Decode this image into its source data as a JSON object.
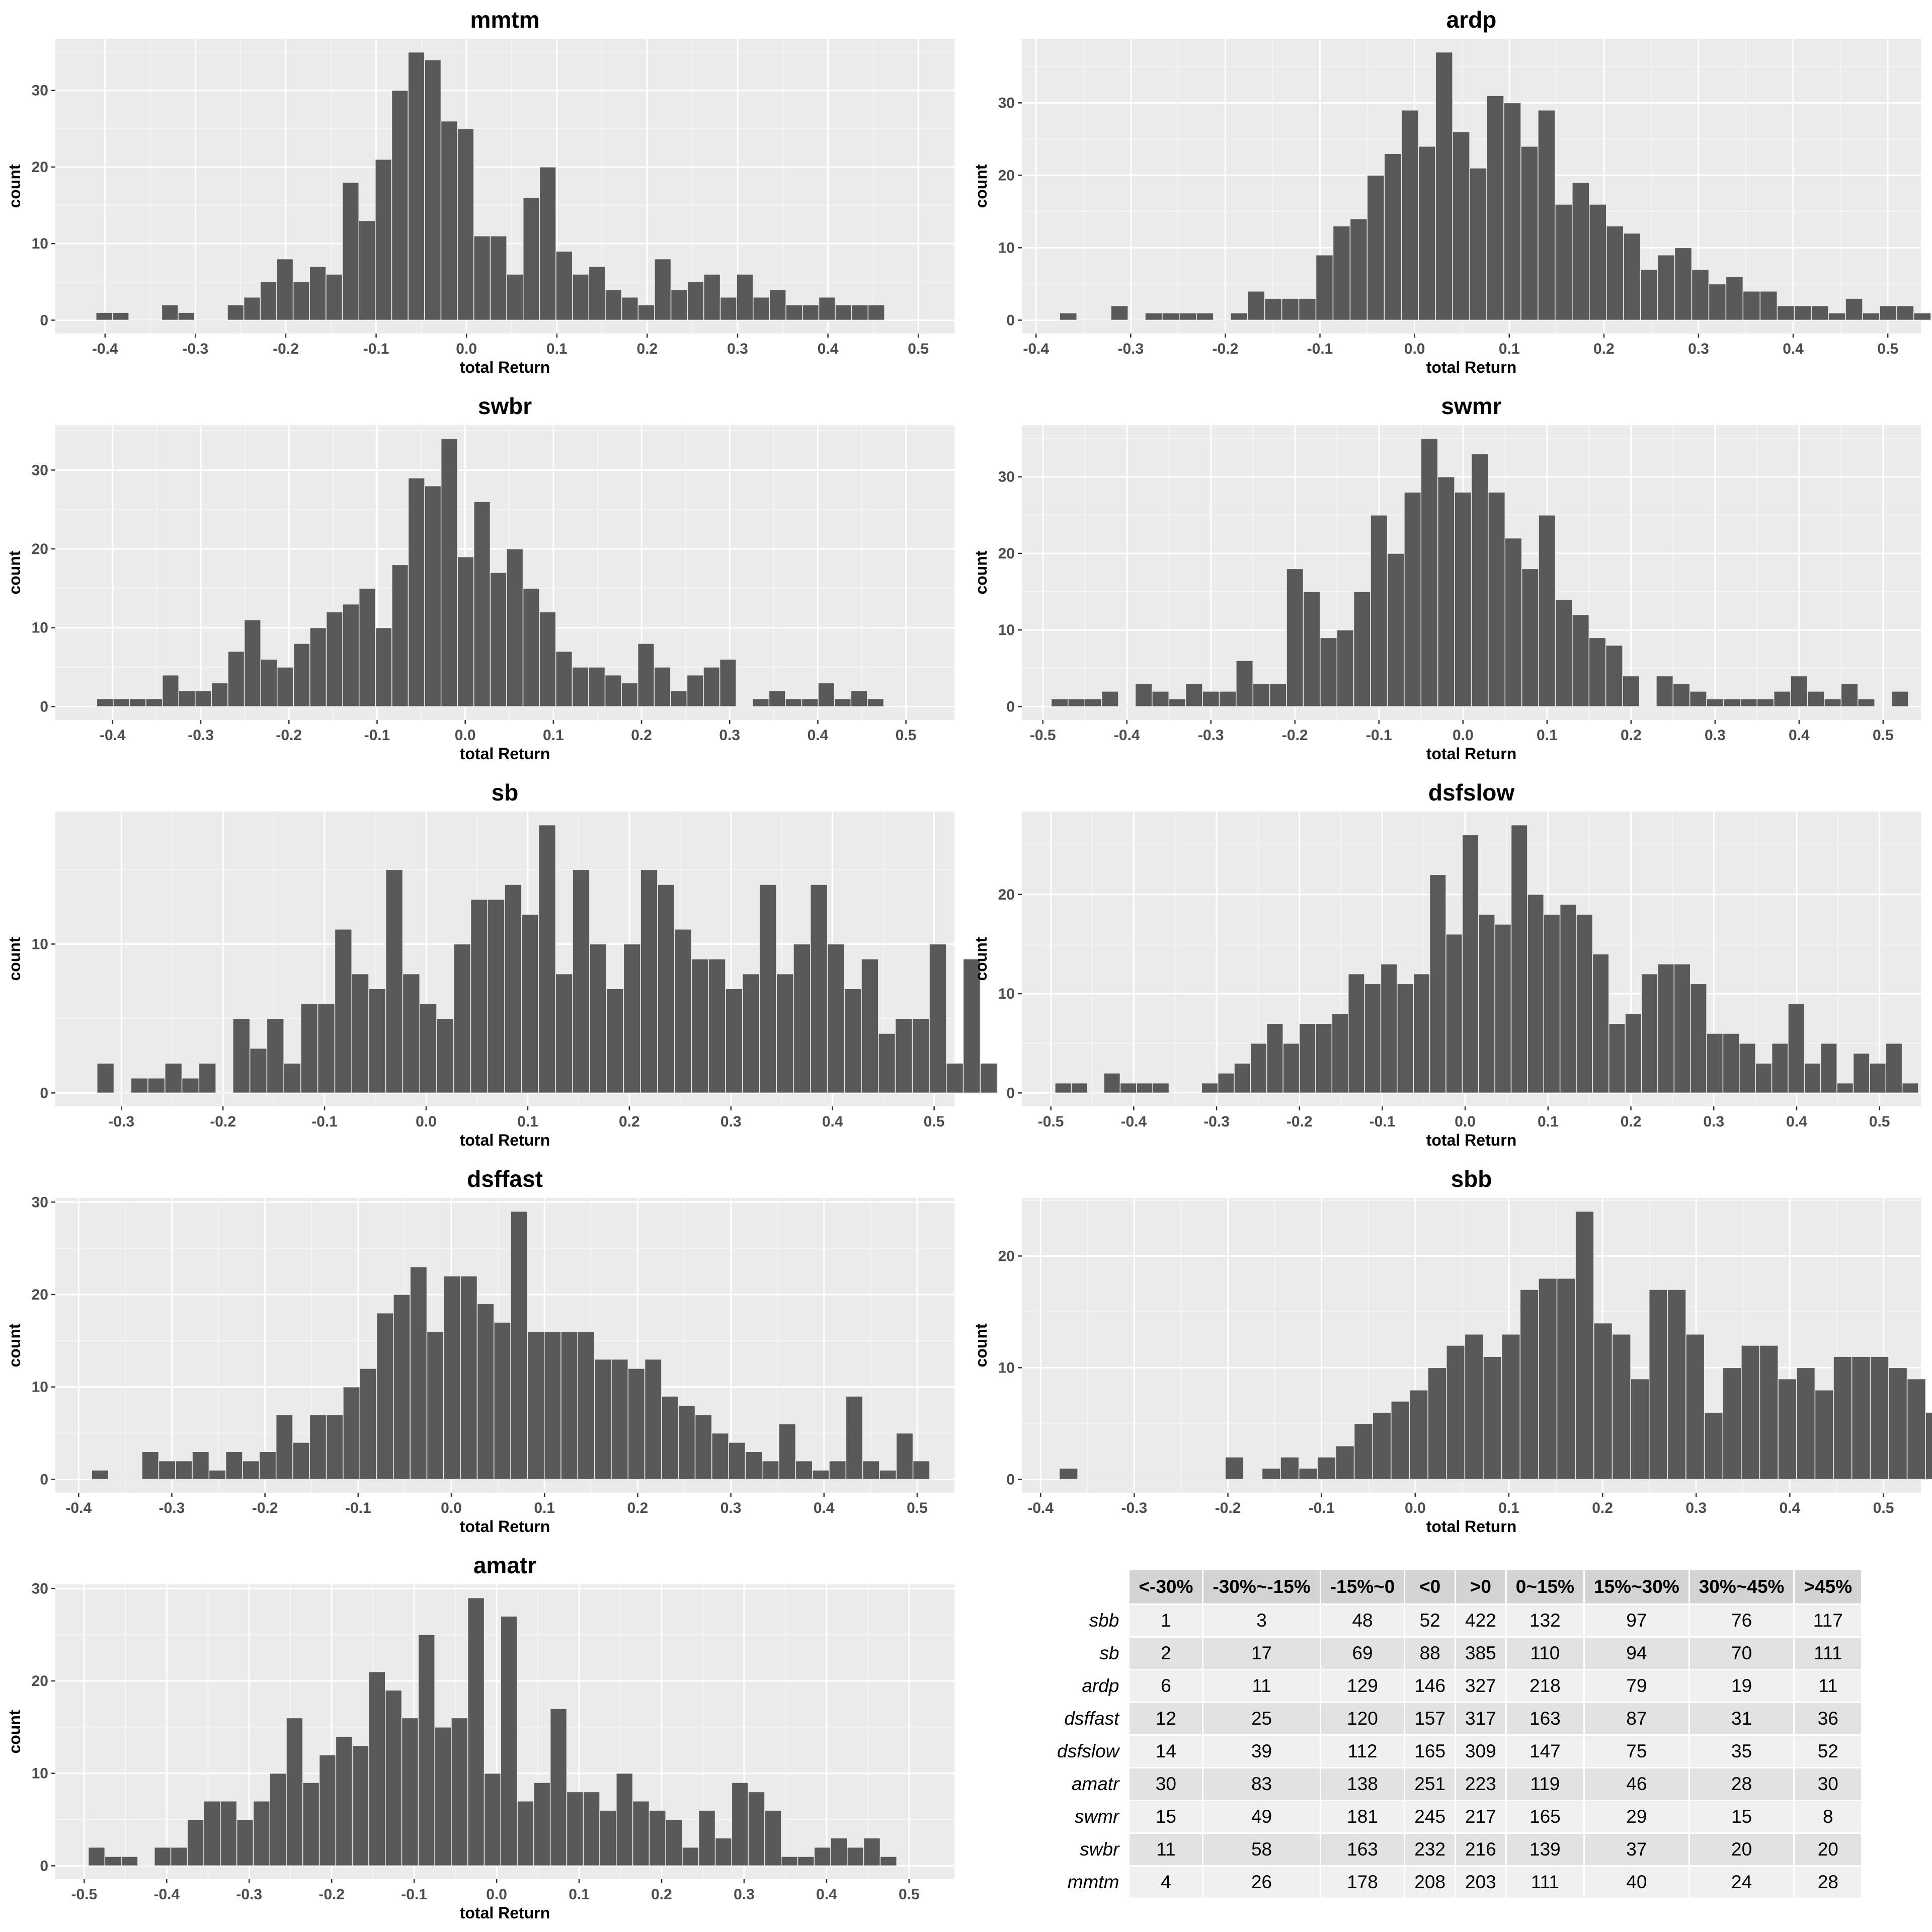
{
  "chart_data": [
    {
      "type": "bar",
      "title": "mmtm",
      "xlabel": "total Return",
      "ylabel": "count",
      "x_start": -0.41,
      "bin_width": 0.01818,
      "xlim": [
        -0.455,
        0.54
      ],
      "ylim": [
        -1.75,
        36.75
      ],
      "xticks": [
        "-0.4",
        "-0.3",
        "-0.2",
        "-0.1",
        "0.0",
        "0.1",
        "0.2",
        "0.3",
        "0.4",
        "0.5"
      ],
      "yticks": [
        "0",
        "10",
        "20",
        "30"
      ],
      "values": [
        1,
        1,
        0,
        0,
        2,
        1,
        0,
        0,
        2,
        3,
        5,
        8,
        5,
        7,
        6,
        18,
        13,
        21,
        30,
        35,
        34,
        26,
        25,
        11,
        11,
        6,
        16,
        20,
        9,
        6,
        7,
        4,
        3,
        2,
        8,
        4,
        5,
        6,
        3,
        6,
        3,
        4,
        2,
        2,
        3,
        2,
        2,
        2
      ]
    },
    {
      "type": "bar",
      "title": "ardp",
      "xlabel": "total Return",
      "ylabel": "count",
      "x_start": -0.375,
      "bin_width": 0.01805,
      "xlim": [
        -0.415,
        0.535
      ],
      "ylim": [
        -1.85,
        38.85
      ],
      "xticks": [
        "-0.4",
        "-0.3",
        "-0.2",
        "-0.1",
        "0.0",
        "0.1",
        "0.2",
        "0.3",
        "0.4",
        "0.5"
      ],
      "yticks": [
        "0",
        "10",
        "20",
        "30"
      ],
      "values": [
        1,
        0,
        0,
        2,
        0,
        1,
        1,
        1,
        1,
        0,
        1,
        4,
        3,
        3,
        3,
        9,
        13,
        14,
        20,
        23,
        29,
        24,
        37,
        26,
        21,
        31,
        30,
        24,
        29,
        16,
        19,
        16,
        13,
        12,
        7,
        9,
        10,
        7,
        5,
        6,
        4,
        4,
        2,
        2,
        2,
        1,
        3,
        1,
        2,
        2,
        1
      ]
    },
    {
      "type": "bar",
      "title": "swbr",
      "xlabel": "total Return",
      "ylabel": "count",
      "x_start": -0.418,
      "bin_width": 0.0186,
      "xlim": [
        -0.465,
        0.555
      ],
      "ylim": [
        -1.7,
        35.7
      ],
      "xticks": [
        "-0.4",
        "-0.3",
        "-0.2",
        "-0.1",
        "0.0",
        "0.1",
        "0.2",
        "0.3",
        "0.4",
        "0.5"
      ],
      "yticks": [
        "0",
        "10",
        "20",
        "30"
      ],
      "values": [
        1,
        1,
        1,
        1,
        4,
        2,
        2,
        3,
        7,
        11,
        6,
        5,
        8,
        10,
        12,
        13,
        15,
        10,
        18,
        29,
        28,
        34,
        19,
        26,
        17,
        20,
        15,
        12,
        7,
        5,
        5,
        4,
        3,
        8,
        5,
        2,
        4,
        5,
        6,
        0,
        1,
        2,
        1,
        1,
        3,
        1,
        2,
        1
      ]
    },
    {
      "type": "bar",
      "title": "swmr",
      "xlabel": "total Return",
      "ylabel": "count",
      "x_start": -0.49,
      "bin_width": 0.02,
      "xlim": [
        -0.525,
        0.545
      ],
      "ylim": [
        -1.75,
        36.75
      ],
      "xticks": [
        "-0.5",
        "-0.4",
        "-0.3",
        "-0.2",
        "-0.1",
        "0.0",
        "0.1",
        "0.2",
        "0.3",
        "0.4",
        "0.5"
      ],
      "yticks": [
        "0",
        "10",
        "20",
        "30"
      ],
      "values": [
        1,
        1,
        1,
        2,
        0,
        3,
        2,
        1,
        3,
        2,
        2,
        6,
        3,
        3,
        18,
        15,
        9,
        10,
        15,
        25,
        20,
        28,
        35,
        30,
        28,
        33,
        28,
        22,
        18,
        25,
        14,
        12,
        9,
        8,
        4,
        0,
        4,
        3,
        2,
        1,
        1,
        1,
        1,
        2,
        4,
        2,
        1,
        3,
        1,
        0,
        2
      ]
    },
    {
      "type": "bar",
      "title": "sb",
      "xlabel": "total Return",
      "ylabel": "count",
      "x_start": -0.324,
      "bin_width": 0.01672,
      "xlim": [
        -0.365,
        0.52
      ],
      "ylim": [
        -0.9,
        18.9
      ],
      "xticks": [
        "-0.3",
        "-0.2",
        "-0.1",
        "0.0",
        "0.1",
        "0.2",
        "0.3",
        "0.4",
        "0.5"
      ],
      "yticks": [
        "0",
        "10"
      ],
      "values": [
        2,
        0,
        1,
        1,
        2,
        1,
        2,
        0,
        5,
        3,
        5,
        2,
        6,
        6,
        11,
        8,
        7,
        15,
        8,
        6,
        5,
        10,
        13,
        13,
        14,
        12,
        18,
        8,
        15,
        10,
        7,
        10,
        15,
        14,
        11,
        9,
        9,
        7,
        8,
        14,
        8,
        10,
        14,
        10,
        7,
        9,
        4,
        5,
        5,
        10,
        2,
        9,
        2
      ]
    },
    {
      "type": "bar",
      "title": "dsfslow",
      "xlabel": "total Return",
      "ylabel": "count",
      "x_start": -0.495,
      "bin_width": 0.01966,
      "xlim": [
        -0.535,
        0.55
      ],
      "ylim": [
        -1.35,
        28.35
      ],
      "xticks": [
        "-0.5",
        "-0.4",
        "-0.3",
        "-0.2",
        "-0.1",
        "0.0",
        "0.1",
        "0.2",
        "0.3",
        "0.4",
        "0.5"
      ],
      "yticks": [
        "0",
        "10",
        "20"
      ],
      "values": [
        1,
        1,
        0,
        2,
        1,
        1,
        1,
        0,
        0,
        1,
        2,
        3,
        5,
        7,
        5,
        7,
        7,
        8,
        12,
        11,
        13,
        11,
        12,
        22,
        16,
        26,
        18,
        17,
        27,
        20,
        18,
        19,
        18,
        14,
        7,
        8,
        12,
        13,
        13,
        11,
        6,
        6,
        5,
        3,
        5,
        9,
        3,
        5,
        1,
        4,
        3,
        5,
        1
      ]
    },
    {
      "type": "bar",
      "title": "dsffast",
      "xlabel": "total Return",
      "ylabel": "count",
      "x_start": -0.386,
      "bin_width": 0.01799,
      "xlim": [
        -0.425,
        0.54
      ],
      "ylim": [
        -1.45,
        30.45
      ],
      "xticks": [
        "-0.4",
        "-0.3",
        "-0.2",
        "-0.1",
        "0.0",
        "0.1",
        "0.2",
        "0.3",
        "0.4",
        "0.5"
      ],
      "yticks": [
        "0",
        "10",
        "20",
        "30"
      ],
      "values": [
        1,
        0,
        0,
        3,
        2,
        2,
        3,
        1,
        3,
        2,
        3,
        7,
        4,
        7,
        7,
        10,
        12,
        18,
        20,
        23,
        16,
        22,
        22,
        19,
        17,
        29,
        16,
        16,
        16,
        16,
        13,
        13,
        12,
        13,
        9,
        8,
        7,
        5,
        4,
        3,
        2,
        6,
        2,
        1,
        2,
        9,
        2,
        1,
        5,
        2
      ]
    },
    {
      "type": "bar",
      "title": "sbb",
      "xlabel": "total Return",
      "ylabel": "count",
      "x_start": -0.38,
      "bin_width": 0.01968,
      "xlim": [
        -0.42,
        0.54
      ],
      "ylim": [
        -1.2,
        25.2
      ],
      "xticks": [
        "-0.4",
        "-0.3",
        "-0.2",
        "-0.1",
        "0.0",
        "0.1",
        "0.2",
        "0.3",
        "0.4",
        "0.5"
      ],
      "yticks": [
        "0",
        "10",
        "20"
      ],
      "values": [
        1,
        0,
        0,
        0,
        0,
        0,
        0,
        0,
        0,
        2,
        0,
        1,
        2,
        1,
        2,
        3,
        5,
        6,
        7,
        8,
        10,
        12,
        13,
        11,
        13,
        17,
        18,
        18,
        24,
        14,
        13,
        9,
        17,
        17,
        13,
        6,
        10,
        12,
        12,
        9,
        10,
        8,
        11,
        11,
        11,
        10,
        9,
        6,
        10,
        8,
        4,
        2
      ]
    },
    {
      "type": "bar",
      "title": "amatr",
      "xlabel": "total Return",
      "ylabel": "count",
      "x_start": -0.495,
      "bin_width": 0.02,
      "xlim": [
        -0.535,
        0.555
      ],
      "ylim": [
        -1.45,
        30.45
      ],
      "xticks": [
        "-0.5",
        "-0.4",
        "-0.3",
        "-0.2",
        "-0.1",
        "0.0",
        "0.1",
        "0.2",
        "0.3",
        "0.4",
        "0.5"
      ],
      "yticks": [
        "0",
        "10",
        "20",
        "30"
      ],
      "values": [
        2,
        1,
        1,
        0,
        2,
        2,
        5,
        7,
        7,
        5,
        7,
        10,
        16,
        9,
        12,
        14,
        13,
        21,
        19,
        16,
        25,
        15,
        16,
        29,
        10,
        27,
        7,
        9,
        17,
        8,
        8,
        6,
        10,
        7,
        6,
        5,
        2,
        6,
        3,
        9,
        8,
        6,
        1,
        1,
        2,
        3,
        2,
        3,
        1
      ]
    },
    {
      "type": "table",
      "title": "",
      "columns": [
        "<-30%",
        "-30%~-15%",
        "-15%~0",
        "<0",
        ">0",
        "0~15%",
        "15%~30%",
        "30%~45%",
        ">45%"
      ],
      "rows": [
        {
          "label": "sbb",
          "values": [
            1,
            3,
            48,
            52,
            422,
            132,
            97,
            76,
            117
          ]
        },
        {
          "label": "sb",
          "values": [
            2,
            17,
            69,
            88,
            385,
            110,
            94,
            70,
            111
          ]
        },
        {
          "label": "ardp",
          "values": [
            6,
            11,
            129,
            146,
            327,
            218,
            79,
            19,
            11
          ]
        },
        {
          "label": "dsffast",
          "values": [
            12,
            25,
            120,
            157,
            317,
            163,
            87,
            31,
            36
          ]
        },
        {
          "label": "dsfslow",
          "values": [
            14,
            39,
            112,
            165,
            309,
            147,
            75,
            35,
            52
          ]
        },
        {
          "label": "amatr",
          "values": [
            30,
            83,
            138,
            251,
            223,
            119,
            46,
            28,
            30
          ]
        },
        {
          "label": "swmr",
          "values": [
            15,
            49,
            181,
            245,
            217,
            165,
            29,
            15,
            8
          ]
        },
        {
          "label": "swbr",
          "values": [
            11,
            58,
            163,
            232,
            216,
            139,
            37,
            20,
            20
          ]
        },
        {
          "label": "mmtm",
          "values": [
            4,
            26,
            178,
            208,
            203,
            111,
            40,
            24,
            28
          ]
        }
      ]
    }
  ],
  "colors": {
    "panel_bg": "#ebebeb",
    "grid_major": "#ffffff",
    "bar_fill": "#595959",
    "bar_edge": "#ebebeb",
    "header_bg": "#d3d3d3",
    "row_bg_odd": "#f0f0f0",
    "row_bg_even": "#e2e2e2"
  }
}
